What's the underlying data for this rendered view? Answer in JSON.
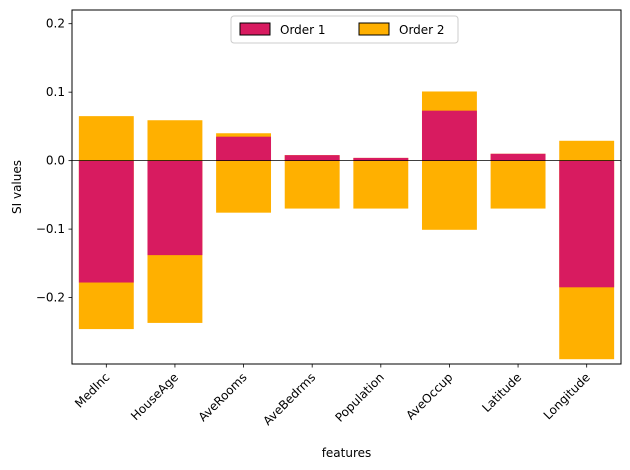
{
  "chart_data": {
    "type": "bar",
    "stacked": true,
    "categories": [
      "MedInc",
      "HouseAge",
      "AveRooms",
      "AveBedrms",
      "Population",
      "AveOccup",
      "Latitude",
      "Longitude"
    ],
    "series": [
      {
        "name": "Order 1",
        "color": "#d81b60",
        "values": [
          -0.178,
          -0.138,
          0.035,
          0.008,
          0.004,
          0.073,
          0.01,
          -0.185
        ]
      },
      {
        "name": "Order 2",
        "color": "#ffb000",
        "values": [
          0.065,
          0.059,
          0.04,
          0.008,
          0.004,
          0.101,
          0.01,
          0.029
        ]
      }
    ],
    "segments": {
      "order2_total_extent": [
        {
          "category": "MedInc",
          "low": -0.246,
          "high": 0.065
        },
        {
          "category": "HouseAge",
          "low": -0.237,
          "high": 0.059
        },
        {
          "category": "AveRooms",
          "low": -0.076,
          "high": 0.04
        },
        {
          "category": "AveBedrms",
          "low": -0.07,
          "high": 0.008
        },
        {
          "category": "Population",
          "low": -0.07,
          "high": 0.004
        },
        {
          "category": "AveOccup",
          "low": -0.101,
          "high": 0.101
        },
        {
          "category": "Latitude",
          "low": -0.07,
          "high": 0.01
        },
        {
          "category": "Longitude",
          "low": -0.29,
          "high": 0.029
        }
      ]
    },
    "xlabel": "features",
    "ylabel": "SI values",
    "ylim": [
      -0.297,
      0.22
    ],
    "yticks": [
      0.2,
      0.1,
      0.0,
      -0.1,
      -0.2
    ],
    "ytick_labels": [
      "0.2",
      "0.1",
      "0.0",
      "−0.1",
      "−0.2"
    ],
    "legend": {
      "placement": "top-center",
      "entries": [
        "Order 1",
        "Order 2"
      ]
    },
    "grid": false,
    "zero_line": true
  }
}
